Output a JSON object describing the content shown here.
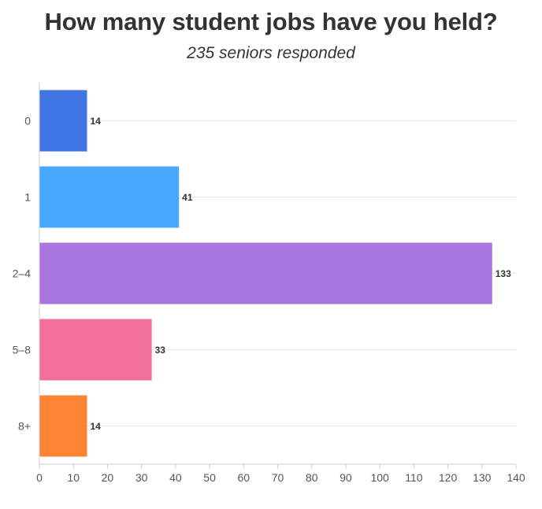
{
  "chart_data": {
    "type": "bar",
    "orientation": "horizontal",
    "title": "How many student jobs have you held?",
    "subtitle": "235 seniors responded",
    "categories": [
      "0",
      "1",
      "2–4",
      "5–8",
      "8+"
    ],
    "values": [
      14,
      41,
      133,
      33,
      14
    ],
    "data_labels": [
      "14",
      "41",
      "133",
      "33",
      "14"
    ],
    "colors": [
      "#3f76e4",
      "#48a7ff",
      "#a874e0",
      "#f26f9b",
      "#fe8434"
    ],
    "xlim": [
      0,
      140
    ],
    "xticks": [
      0,
      10,
      20,
      30,
      40,
      50,
      60,
      70,
      80,
      90,
      100,
      110,
      120,
      130,
      140
    ],
    "xlabel": "",
    "ylabel": "",
    "grid": "horizontal-at-categories",
    "legend": "none"
  }
}
